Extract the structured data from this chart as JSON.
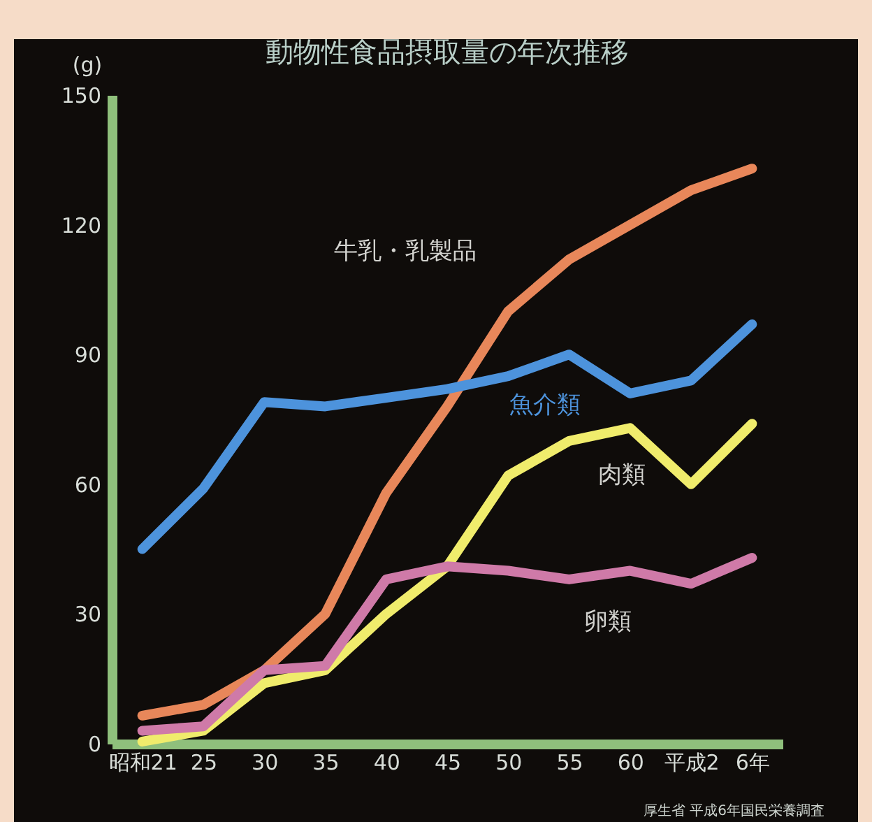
{
  "chart_data": {
    "type": "line",
    "title": "動物性食品摂取量の年次推移",
    "ylabel": "(g)",
    "categories": [
      "昭和21",
      "25",
      "30",
      "35",
      "40",
      "45",
      "50",
      "55",
      "60",
      "平成2",
      "6年"
    ],
    "series": [
      {
        "name": "牛乳・乳製品",
        "color": "#e8875a",
        "values": [
          6.5,
          9,
          17,
          30,
          58,
          78,
          100,
          112,
          120,
          128,
          133
        ]
      },
      {
        "name": "魚介類",
        "color": "#4d93dc",
        "values": [
          45,
          59,
          79,
          78,
          80,
          82,
          85,
          90,
          81,
          84,
          97
        ]
      },
      {
        "name": "肉類",
        "color": "#f0ec6c",
        "values": [
          0.5,
          3,
          14,
          17,
          30,
          41,
          62,
          70,
          73,
          60,
          74
        ]
      },
      {
        "name": "卵類",
        "color": "#cf7aa8",
        "values": [
          3,
          4,
          17,
          18,
          38,
          41,
          40,
          38,
          40,
          37,
          43
        ]
      }
    ],
    "ylim": [
      0,
      150
    ],
    "yticks": [
      0,
      30,
      60,
      90,
      120,
      150
    ],
    "grid": false,
    "legend": false,
    "marker": "none",
    "line_style": "solid",
    "annotations": [
      "厚生省 平成6年国民栄養調査"
    ]
  }
}
